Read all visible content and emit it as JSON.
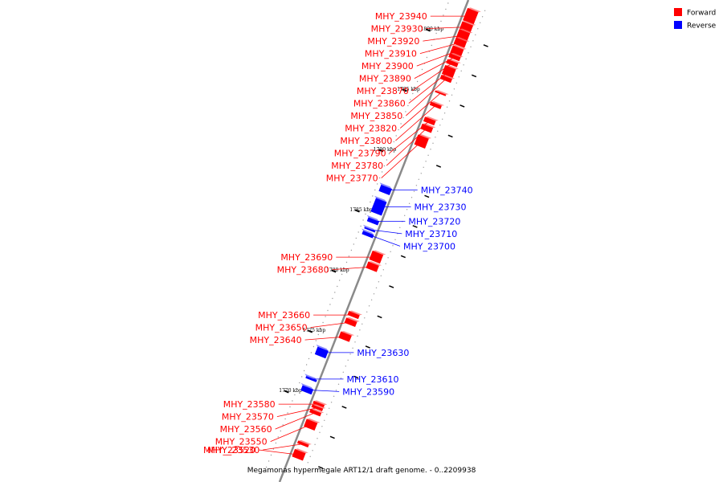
{
  "legend": [
    {
      "label": "Forward",
      "color": "#ff0000"
    },
    {
      "label": "Reverse",
      "color": "#0000ff"
    }
  ],
  "caption": "Megamonas hypermegale ART12/1 draft genome. - 0..2209938",
  "colors": {
    "forward": "#ff0000",
    "reverse": "#0000ff",
    "backbone": "#8a8a8a"
  },
  "scale_ticks": [
    {
      "label": "1800 kbp",
      "kbp": 1800
    },
    {
      "label": "1795 kbp",
      "kbp": 1795
    },
    {
      "label": "1790 kbp",
      "kbp": 1790
    },
    {
      "label": "1785 kbp",
      "kbp": 1785
    },
    {
      "label": "1780 kbp",
      "kbp": 1780
    },
    {
      "label": "1775 kbp",
      "kbp": 1775
    },
    {
      "label": "1770 kbp",
      "kbp": 1770
    }
  ],
  "genes": [
    {
      "name": "MHY_23940",
      "strand": "forward",
      "kbp": 1802.2,
      "len": 1.0
    },
    {
      "name": "MHY_23930",
      "strand": "forward",
      "kbp": 1801.3,
      "len": 0.6
    },
    {
      "name": "MHY_23920",
      "strand": "forward",
      "kbp": 1800.6,
      "len": 0.7
    },
    {
      "name": "MHY_23910",
      "strand": "forward",
      "kbp": 1800.0,
      "len": 0.5
    },
    {
      "name": "MHY_23900",
      "strand": "forward",
      "kbp": 1799.3,
      "len": 0.6
    },
    {
      "name": "MHY_23890",
      "strand": "forward",
      "kbp": 1798.8,
      "len": 0.3
    },
    {
      "name": "MHY_23870",
      "strand": "forward",
      "kbp": 1798.3,
      "len": 0.3
    },
    {
      "name": "MHY_23860",
      "strand": "forward",
      "kbp": 1797.6,
      "len": 0.7
    },
    {
      "name": "MHY_23850",
      "strand": "forward",
      "kbp": 1797.0,
      "len": 0.3
    },
    {
      "name": "MHY_23820",
      "strand": "forward",
      "kbp": 1795.8,
      "len": 0.1
    },
    {
      "name": "MHY_23800",
      "strand": "forward",
      "kbp": 1794.8,
      "len": 0.25
    },
    {
      "name": "MHY_23790",
      "strand": "forward",
      "kbp": 1793.5,
      "len": 0.35
    },
    {
      "name": "MHY_23780",
      "strand": "forward",
      "kbp": 1792.9,
      "len": 0.4
    },
    {
      "name": "MHY_23770",
      "strand": "forward",
      "kbp": 1791.8,
      "len": 0.8
    },
    {
      "name": "MHY_23740",
      "strand": "reverse",
      "kbp": 1787.3,
      "len": 0.5
    },
    {
      "name": "MHY_23730",
      "strand": "reverse",
      "kbp": 1785.9,
      "len": 1.1
    },
    {
      "name": "MHY_23720",
      "strand": "reverse",
      "kbp": 1784.7,
      "len": 0.3
    },
    {
      "name": "MHY_23710",
      "strand": "reverse",
      "kbp": 1784.0,
      "len": 0.1
    },
    {
      "name": "MHY_23700",
      "strand": "reverse",
      "kbp": 1783.6,
      "len": 0.25
    },
    {
      "name": "MHY_23690",
      "strand": "forward",
      "kbp": 1782.2,
      "len": 0.7
    },
    {
      "name": "MHY_23680",
      "strand": "forward",
      "kbp": 1781.4,
      "len": 0.5
    },
    {
      "name": "MHY_23660",
      "strand": "forward",
      "kbp": 1777.4,
      "len": 0.3
    },
    {
      "name": "MHY_23650",
      "strand": "forward",
      "kbp": 1776.8,
      "len": 0.4
    },
    {
      "name": "MHY_23640",
      "strand": "forward",
      "kbp": 1775.6,
      "len": 0.5
    },
    {
      "name": "MHY_23630",
      "strand": "reverse",
      "kbp": 1773.8,
      "len": 0.6
    },
    {
      "name": "MHY_23610",
      "strand": "reverse",
      "kbp": 1771.6,
      "len": 0.15
    },
    {
      "name": "MHY_23590",
      "strand": "reverse",
      "kbp": 1770.7,
      "len": 0.4
    },
    {
      "name": "MHY_23580",
      "strand": "forward",
      "kbp": 1770.0,
      "len": 0.2
    },
    {
      "name": "MHY_23570",
      "strand": "forward",
      "kbp": 1769.7,
      "len": 0.2
    },
    {
      "name": "MHY_23560",
      "strand": "forward",
      "kbp": 1769.3,
      "len": 0.25
    },
    {
      "name": "MHY_23550",
      "strand": "forward",
      "kbp": 1768.3,
      "len": 0.6
    },
    {
      "name": "MHY_23530",
      "strand": "forward",
      "kbp": 1766.7,
      "len": 0.2
    },
    {
      "name": "MHY_23520",
      "strand": "forward",
      "kbp": 1765.8,
      "len": 0.6
    }
  ]
}
